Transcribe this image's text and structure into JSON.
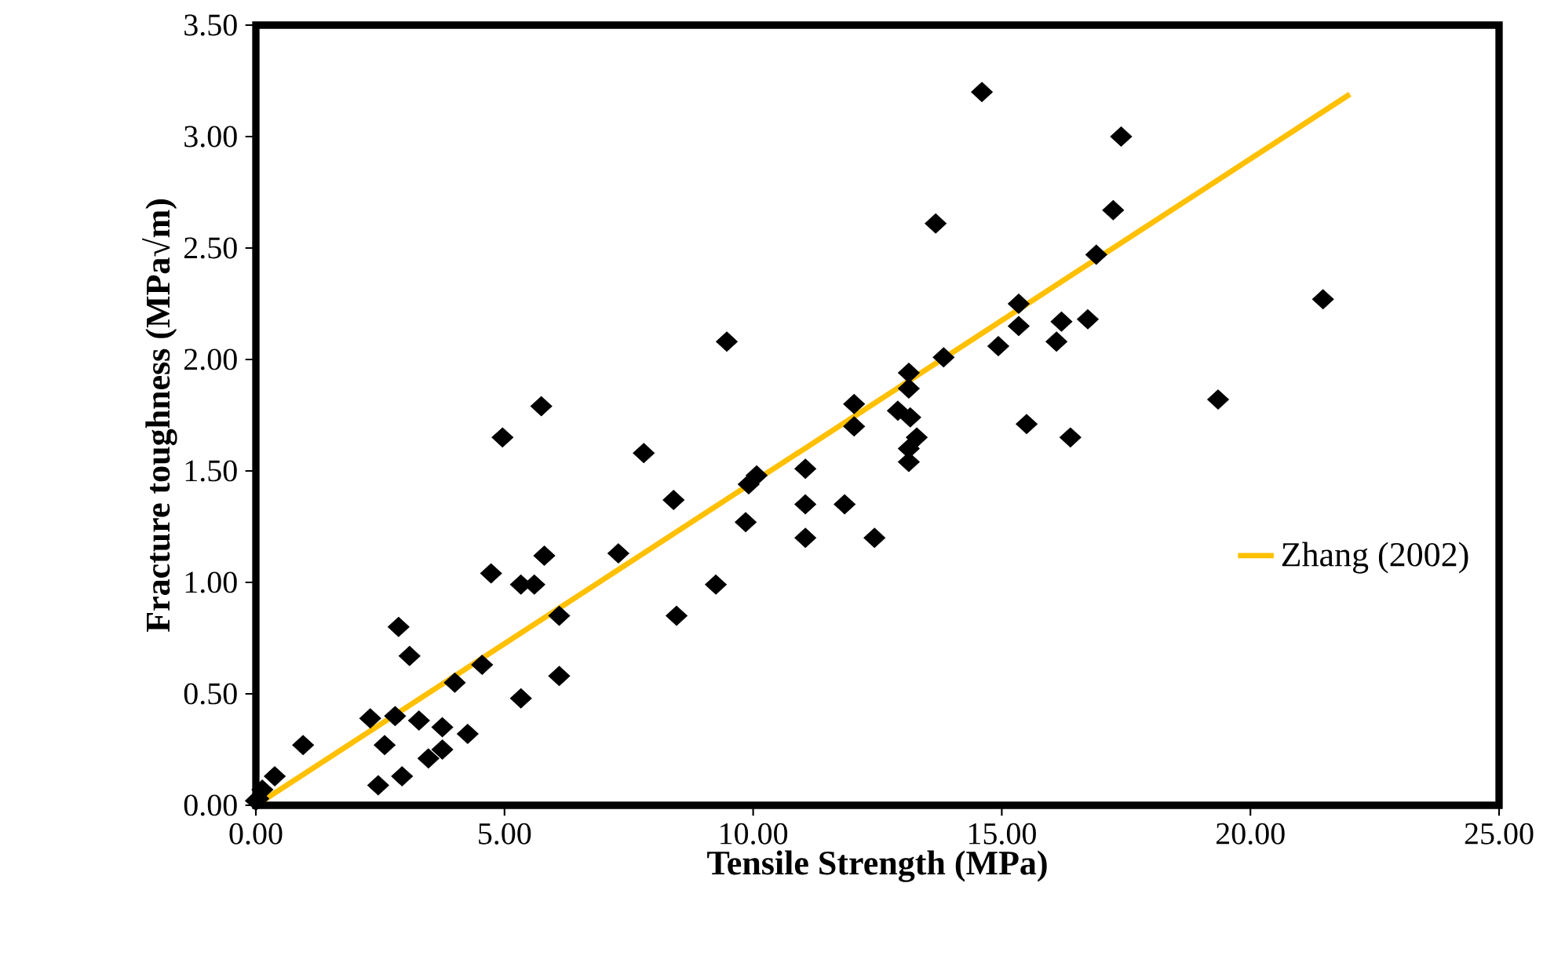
{
  "chart_data": {
    "type": "scatter",
    "xlabel": "Tensile Strength (MPa)",
    "ylabel": "Fracture toughness (MPa√m)",
    "xlim": [
      0,
      25
    ],
    "ylim": [
      0,
      3.5
    ],
    "xticks": [
      {
        "value": 0,
        "label": "0.00"
      },
      {
        "value": 5,
        "label": "5.00"
      },
      {
        "value": 10,
        "label": "10.00"
      },
      {
        "value": 15,
        "label": "15.00"
      },
      {
        "value": 20,
        "label": "20.00"
      },
      {
        "value": 25,
        "label": "25.00"
      }
    ],
    "yticks": [
      {
        "value": 0,
        "label": "0.00"
      },
      {
        "value": 0.5,
        "label": "0.50"
      },
      {
        "value": 1,
        "label": "1.00"
      },
      {
        "value": 1.5,
        "label": "1.50"
      },
      {
        "value": 2,
        "label": "2.00"
      },
      {
        "value": 2.5,
        "label": "2.50"
      },
      {
        "value": 3,
        "label": "3.00"
      },
      {
        "value": 3.5,
        "label": "3.50"
      }
    ],
    "grid": false,
    "legend": "right",
    "series": [
      {
        "color": "#000000",
        "marker": "diamond",
        "x": [
          0.0,
          0.05,
          0.13,
          0.38,
          0.95,
          2.3,
          2.46,
          2.59,
          2.8,
          2.87,
          2.94,
          3.09,
          3.28,
          3.47,
          3.75,
          3.75,
          4.0,
          4.26,
          4.55,
          4.73,
          4.96,
          5.33,
          5.33,
          5.6,
          5.74,
          5.8,
          6.1,
          6.1,
          7.29,
          7.8,
          8.4,
          8.46,
          9.25,
          9.47,
          9.85,
          9.91,
          10.07,
          11.05,
          11.05,
          11.05,
          11.84,
          12.03,
          12.03,
          12.44,
          12.91,
          13.13,
          13.13,
          13.13,
          13.13,
          13.16,
          13.29,
          13.67,
          13.83,
          14.6,
          14.93,
          15.34,
          15.34,
          15.5,
          16.1,
          16.2,
          16.38,
          16.73,
          16.9,
          17.24,
          17.4,
          19.35,
          21.46
        ],
        "values": [
          0.02,
          0.03,
          0.07,
          0.13,
          0.27,
          0.39,
          0.09,
          0.27,
          0.4,
          0.8,
          0.13,
          0.67,
          0.38,
          0.21,
          0.35,
          0.25,
          0.55,
          0.32,
          0.63,
          1.04,
          1.65,
          0.99,
          0.48,
          0.99,
          1.79,
          1.12,
          0.85,
          0.58,
          1.13,
          1.58,
          1.37,
          0.85,
          0.99,
          2.08,
          1.27,
          1.44,
          1.48,
          1.51,
          1.35,
          1.2,
          1.35,
          1.8,
          1.7,
          1.2,
          1.77,
          1.94,
          1.87,
          1.6,
          1.54,
          1.74,
          1.65,
          2.61,
          2.01,
          3.2,
          2.06,
          2.25,
          2.15,
          1.71,
          2.08,
          2.17,
          1.65,
          2.18,
          2.47,
          2.67,
          3.0,
          1.82,
          2.27
        ]
      },
      {
        "type": "line",
        "name": "Zhang (2002)",
        "color": "#ffc000",
        "x": [
          0,
          22
        ],
        "values": [
          0,
          3.19
        ]
      }
    ]
  }
}
